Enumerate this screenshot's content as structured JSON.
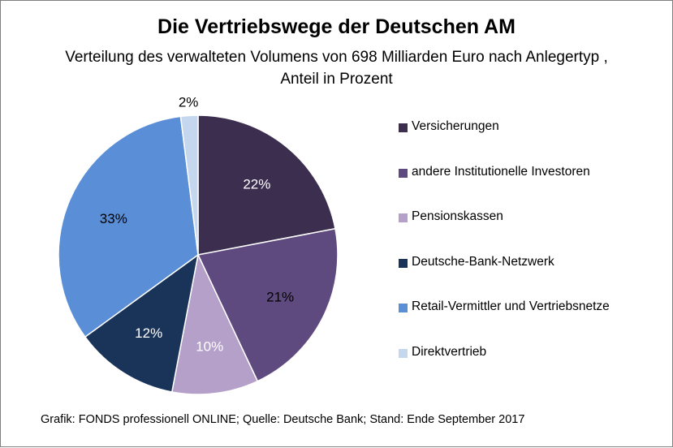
{
  "chart_data": {
    "type": "pie",
    "title": "Die Vertriebswege der Deutschen AM",
    "subtitle": "Verteilung des verwalteten Volumens von 698 Milliarden Euro nach Anlegertyp , Anteil in Prozent",
    "categories": [
      "Versicherungen",
      "andere Institutionelle Investoren",
      "Pensionskassen",
      "Deutsche-Bank-Netzwerk",
      "Retail-Vermittler und Vertriebsnetze",
      "Direktvertrieb"
    ],
    "values": [
      22,
      21,
      10,
      12,
      33,
      2
    ],
    "data_labels": [
      "22%",
      "21%",
      "10%",
      "12%",
      "33%",
      "2%"
    ],
    "colors": [
      "#3b2e4f",
      "#5f4a7f",
      "#b4a0c8",
      "#1a3459",
      "#5a8fd8",
      "#c4d7ef"
    ],
    "label_colors": [
      "#ffffff",
      "#000000",
      "#ffffff",
      "#ffffff",
      "#000000",
      "#000000"
    ],
    "legend_position": "right",
    "footer": "Grafik: FONDS professionell ONLINE;  Quelle: Deutsche Bank; Stand: Ende September 2017"
  }
}
